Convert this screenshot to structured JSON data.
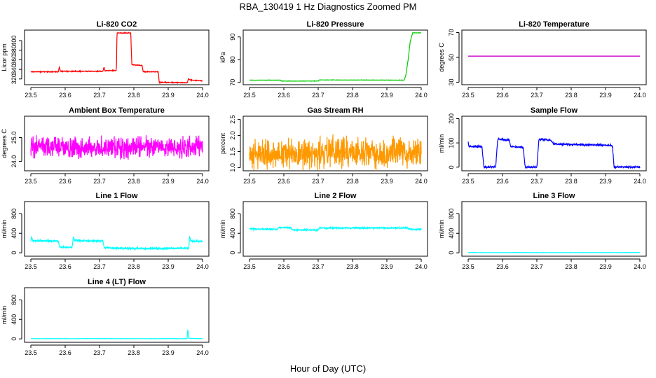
{
  "title": "RBA_130419  1 Hz Diagnostics Zoomed PM",
  "x_caption": "Hour of Day (UTC)",
  "chart_data": [
    {
      "id": "li820-co2",
      "type": "line",
      "title": "Li-820 CO2",
      "ylabel": "Licor ppm",
      "color": "#ff0000",
      "xlim": [
        23.5,
        24.0
      ],
      "xticks": [
        "23.5",
        "23.6",
        "23.7",
        "23.8",
        "23.9",
        "24.0"
      ],
      "ylim": [
        308,
        422
      ],
      "yticks": [
        {
          "v": 320,
          "label": "320"
        },
        {
          "v": 340,
          "label": "340"
        },
        {
          "v": 360,
          "label": "360"
        },
        {
          "v": 380,
          "label": "380"
        },
        {
          "v": 400,
          "label": "400"
        }
      ],
      "noise": 1.2,
      "points": [
        [
          23.5,
          335
        ],
        [
          23.58,
          335
        ],
        [
          23.583,
          345
        ],
        [
          23.586,
          336
        ],
        [
          23.71,
          336
        ],
        [
          23.713,
          345
        ],
        [
          23.716,
          337
        ],
        [
          23.749,
          338
        ],
        [
          23.751,
          416
        ],
        [
          23.791,
          416
        ],
        [
          23.794,
          350
        ],
        [
          23.824,
          348
        ],
        [
          23.827,
          335
        ],
        [
          23.871,
          335
        ],
        [
          23.874,
          313
        ],
        [
          23.956,
          312
        ],
        [
          23.959,
          322
        ],
        [
          23.962,
          318
        ],
        [
          24.0,
          316
        ]
      ]
    },
    {
      "id": "li820-pressure",
      "type": "line",
      "title": "Li-820 Pressure",
      "ylabel": "kPa",
      "color": "#00cc00",
      "xlim": [
        23.5,
        24.0
      ],
      "xticks": [
        "23.5",
        "23.6",
        "23.7",
        "23.8",
        "23.9",
        "24.0"
      ],
      "ylim": [
        69,
        93
      ],
      "yticks": [
        {
          "v": 70,
          "label": "70"
        },
        {
          "v": 80,
          "label": "80"
        },
        {
          "v": 90,
          "label": "90"
        }
      ],
      "noise": 0.1,
      "points": [
        [
          23.5,
          71.0
        ],
        [
          23.59,
          71.0
        ],
        [
          23.593,
          70.6
        ],
        [
          23.7,
          70.6
        ],
        [
          23.703,
          71.1
        ],
        [
          23.95,
          71.0
        ],
        [
          23.955,
          73
        ],
        [
          23.962,
          80
        ],
        [
          23.968,
          88
        ],
        [
          23.975,
          91.8
        ],
        [
          24.0,
          91.8
        ]
      ]
    },
    {
      "id": "li820-temperature",
      "type": "line",
      "title": "Li-820 Temperature",
      "ylabel": "degrees C",
      "color": "#cc00cc",
      "xlim": [
        23.5,
        24.0
      ],
      "xticks": [
        "23.5",
        "23.6",
        "23.7",
        "23.8",
        "23.9",
        "24.0"
      ],
      "ylim": [
        28,
        72
      ],
      "yticks": [
        {
          "v": 30,
          "label": "30"
        },
        {
          "v": 50,
          "label": "50"
        },
        {
          "v": 70,
          "label": "70"
        }
      ],
      "noise": 0,
      "points": [
        [
          23.5,
          51
        ],
        [
          24.0,
          51
        ]
      ]
    },
    {
      "id": "ambient-box-temperature",
      "type": "line",
      "title": "Ambient Box Temperature",
      "ylabel": "degrees C",
      "color": "#ff00ff",
      "xlim": [
        23.5,
        24.0
      ],
      "xticks": [
        "23.5",
        "23.6",
        "23.7",
        "23.8",
        "23.9",
        "24.0"
      ],
      "ylim": [
        23.6,
        25.9
      ],
      "yticks": [
        {
          "v": 24.0,
          "label": "24.0"
        },
        {
          "v": 25.0,
          "label": "25.0"
        }
      ],
      "noise": 0.55,
      "points": [
        [
          23.5,
          24.6
        ],
        [
          24.0,
          24.6
        ]
      ]
    },
    {
      "id": "gas-stream-rh",
      "type": "line",
      "title": "Gas Stream RH",
      "ylabel": "percent",
      "color": "#ff9900",
      "xlim": [
        23.5,
        24.0
      ],
      "xticks": [
        "23.5",
        "23.6",
        "23.7",
        "23.8",
        "23.9",
        "24.0"
      ],
      "ylim": [
        0.9,
        2.6
      ],
      "yticks": [
        {
          "v": 1.0,
          "label": "1.0"
        },
        {
          "v": 1.5,
          "label": "1.5"
        },
        {
          "v": 2.0,
          "label": "2.0"
        },
        {
          "v": 2.5,
          "label": "2.5"
        }
      ],
      "noise": 0.6,
      "points": [
        [
          23.5,
          1.45
        ],
        [
          24.0,
          1.45
        ]
      ]
    },
    {
      "id": "sample-flow",
      "type": "line",
      "title": "Sample Flow",
      "ylabel": "ml/min",
      "color": "#0000ff",
      "xlim": [
        23.5,
        24.0
      ],
      "xticks": [
        "23.5",
        "23.6",
        "23.7",
        "23.8",
        "23.9",
        "24.0"
      ],
      "ylim": [
        -15,
        210
      ],
      "yticks": [
        {
          "v": 0,
          "label": "0"
        },
        {
          "v": 100,
          "label": "100"
        },
        {
          "v": 200,
          "label": "200"
        }
      ],
      "noise": 5,
      "points": [
        [
          23.5,
          105
        ],
        [
          23.502,
          85
        ],
        [
          23.54,
          85
        ],
        [
          23.546,
          0
        ],
        [
          23.58,
          0
        ],
        [
          23.586,
          115
        ],
        [
          23.62,
          112
        ],
        [
          23.624,
          85
        ],
        [
          23.66,
          82
        ],
        [
          23.666,
          0
        ],
        [
          23.7,
          0
        ],
        [
          23.706,
          115
        ],
        [
          23.74,
          112
        ],
        [
          23.75,
          95
        ],
        [
          23.92,
          90
        ],
        [
          23.925,
          0
        ],
        [
          24.0,
          0
        ]
      ]
    },
    {
      "id": "line-1-flow",
      "type": "line",
      "title": "Line 1 Flow",
      "ylabel": "ml/min",
      "color": "#00ffff",
      "xlim": [
        23.5,
        24.0
      ],
      "xticks": [
        "23.5",
        "23.6",
        "23.7",
        "23.8",
        "23.9",
        "24.0"
      ],
      "ylim": [
        -70,
        1050
      ],
      "yticks": [
        {
          "v": 0,
          "label": "0"
        },
        {
          "v": 400,
          "label": "400"
        },
        {
          "v": 800,
          "label": "800"
        }
      ],
      "noise": 25,
      "points": [
        [
          23.5,
          230
        ],
        [
          23.502,
          330
        ],
        [
          23.505,
          250
        ],
        [
          23.58,
          240
        ],
        [
          23.584,
          110
        ],
        [
          23.62,
          110
        ],
        [
          23.624,
          330
        ],
        [
          23.628,
          250
        ],
        [
          23.71,
          240
        ],
        [
          23.714,
          110
        ],
        [
          23.75,
          95
        ],
        [
          23.755,
          90
        ],
        [
          23.96,
          90
        ],
        [
          23.962,
          330
        ],
        [
          23.966,
          240
        ],
        [
          24.0,
          230
        ]
      ]
    },
    {
      "id": "line-2-flow",
      "type": "line",
      "title": "Line 2 Flow",
      "ylabel": "ml/min",
      "color": "#00ffff",
      "xlim": [
        23.5,
        24.0
      ],
      "xticks": [
        "23.5",
        "23.6",
        "23.7",
        "23.8",
        "23.9",
        "24.0"
      ],
      "ylim": [
        -70,
        1050
      ],
      "yticks": [
        {
          "v": 0,
          "label": "0"
        },
        {
          "v": 400,
          "label": "400"
        },
        {
          "v": 800,
          "label": "800"
        }
      ],
      "noise": 20,
      "points": [
        [
          23.5,
          490
        ],
        [
          23.58,
          480
        ],
        [
          23.585,
          520
        ],
        [
          23.62,
          515
        ],
        [
          23.625,
          470
        ],
        [
          23.7,
          470
        ],
        [
          23.705,
          510
        ],
        [
          23.96,
          510
        ],
        [
          23.965,
          480
        ],
        [
          24.0,
          480
        ]
      ]
    },
    {
      "id": "line-3-flow",
      "type": "line",
      "title": "Line 3 Flow",
      "ylabel": "ml/min",
      "color": "#00ffff",
      "xlim": [
        23.5,
        24.0
      ],
      "xticks": [
        "23.5",
        "23.6",
        "23.7",
        "23.8",
        "23.9",
        "24.0"
      ],
      "ylim": [
        -70,
        1050
      ],
      "yticks": [
        {
          "v": 0,
          "label": "0"
        },
        {
          "v": 400,
          "label": "400"
        },
        {
          "v": 800,
          "label": "800"
        }
      ],
      "noise": 3,
      "points": [
        [
          23.5,
          5
        ],
        [
          24.0,
          5
        ]
      ]
    },
    {
      "id": "line-4-lt-flow",
      "type": "line",
      "title": "Line 4 (LT) Flow",
      "ylabel": "ml/min",
      "color": "#00ffff",
      "xlim": [
        23.5,
        24.0
      ],
      "xticks": [
        "23.5",
        "23.6",
        "23.7",
        "23.8",
        "23.9",
        "24.0"
      ],
      "ylim": [
        -70,
        1050
      ],
      "yticks": [
        {
          "v": 0,
          "label": "0"
        },
        {
          "v": 400,
          "label": "400"
        },
        {
          "v": 800,
          "label": "800"
        }
      ],
      "noise": 3,
      "points": [
        [
          23.5,
          5
        ],
        [
          23.955,
          5
        ],
        [
          23.957,
          200
        ],
        [
          23.96,
          10
        ],
        [
          24.0,
          5
        ]
      ]
    }
  ]
}
